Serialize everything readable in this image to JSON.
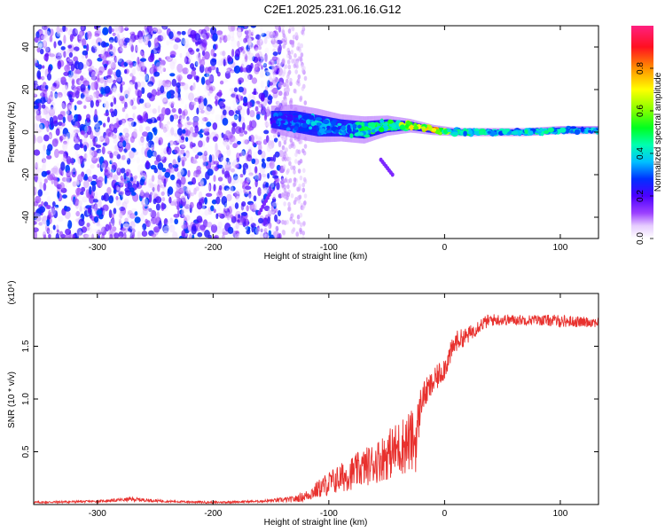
{
  "title": "C2E1.2025.231.06.16.G12",
  "chart_data": [
    {
      "type": "heatmap",
      "title": "C2E1.2025.231.06.16.G12",
      "xlabel": "Height of straight line (km)",
      "ylabel": "Frequency (Hz)",
      "xlim": [
        -355,
        133
      ],
      "ylim": [
        -50,
        50
      ],
      "xticks": [
        -300,
        -200,
        -100,
        0,
        100
      ],
      "xtick_labels": [
        "-300",
        "-200",
        "-100",
        "0",
        "100"
      ],
      "yticks": [
        -40,
        -20,
        0,
        20,
        40
      ],
      "ytick_labels": [
        "-40",
        "-20",
        "0",
        "20",
        "40"
      ],
      "colorbar": {
        "label": "Normalized spectral amplitude",
        "range": [
          0,
          1
        ],
        "ticks": [
          0.0,
          0.2,
          0.4,
          0.6,
          0.8
        ],
        "tick_labels": [
          "0.0",
          "0.2",
          "0.4",
          "0.6",
          "0.8"
        ],
        "colormap": "rainbow (white-violet-blue-cyan-green-yellow-red-pink)"
      },
      "regions": [
        {
          "x_range": [
            -355,
            -140
          ],
          "y_range": [
            -50,
            50
          ],
          "description": "scattered low-amplitude noise",
          "amplitude_range": [
            0.0,
            0.3
          ]
        },
        {
          "x_range": [
            -140,
            133
          ],
          "center_frequency": 0,
          "description": "narrow signal band near 0 Hz",
          "amplitude_range": [
            0.3,
            1.0
          ]
        }
      ],
      "signal_band": {
        "x": [
          -150,
          -130,
          -110,
          -90,
          -70,
          -50,
          -30,
          -10,
          10,
          40,
          70,
          100,
          133
        ],
        "center": [
          6,
          5,
          3,
          2,
          1,
          3,
          3,
          1,
          0,
          0,
          0,
          1,
          1
        ],
        "halfwidth": [
          4,
          5,
          5,
          4,
          4,
          3,
          2,
          1.5,
          1.2,
          1.2,
          1.2,
          1.2,
          1.2
        ],
        "peak_amplitude": [
          0.3,
          0.35,
          0.4,
          0.4,
          0.5,
          0.55,
          0.7,
          0.85,
          0.5,
          0.45,
          0.45,
          0.45,
          0.4
        ]
      },
      "features": [
        {
          "type": "streak",
          "x": [
            -55,
            -45
          ],
          "y": [
            -13,
            -20
          ],
          "amplitude": 0.15
        },
        {
          "type": "streak",
          "x": [
            -150,
            -160
          ],
          "y": [
            -28,
            -38
          ],
          "amplitude": 0.15
        }
      ]
    },
    {
      "type": "line",
      "xlabel": "Height of straight line (km)",
      "ylabel": "SNR (10 * v/v)",
      "y_multiplier": "(x10⁴)",
      "xlim": [
        -355,
        133
      ],
      "ylim": [
        0,
        2.0
      ],
      "xticks": [
        -300,
        -200,
        -100,
        0,
        100
      ],
      "xtick_labels": [
        "-300",
        "-200",
        "-100",
        "0",
        "100"
      ],
      "yticks": [
        0.5,
        1.0,
        1.5
      ],
      "ytick_labels": [
        "0.5",
        "1.0",
        "1.5"
      ],
      "color": "#e8312e",
      "series": [
        {
          "x": [
            -355,
            -300,
            -270,
            -240,
            -200,
            -160,
            -130,
            -120,
            -100,
            -80,
            -60,
            -45,
            -30,
            -25,
            -20,
            -10,
            0,
            10,
            20,
            30,
            40,
            60,
            80,
            100,
            120,
            133
          ],
          "y": [
            0.02,
            0.03,
            0.05,
            0.03,
            0.02,
            0.03,
            0.05,
            0.08,
            0.2,
            0.3,
            0.4,
            0.5,
            0.6,
            0.6,
            1.0,
            1.15,
            1.3,
            1.55,
            1.6,
            1.7,
            1.75,
            1.75,
            1.75,
            1.74,
            1.73,
            1.73
          ],
          "noise": [
            0.01,
            0.01,
            0.02,
            0.01,
            0.01,
            0.01,
            0.03,
            0.05,
            0.12,
            0.16,
            0.2,
            0.25,
            0.3,
            0.3,
            0.15,
            0.12,
            0.12,
            0.1,
            0.08,
            0.07,
            0.06,
            0.05,
            0.05,
            0.06,
            0.05,
            0.05
          ]
        }
      ]
    }
  ]
}
